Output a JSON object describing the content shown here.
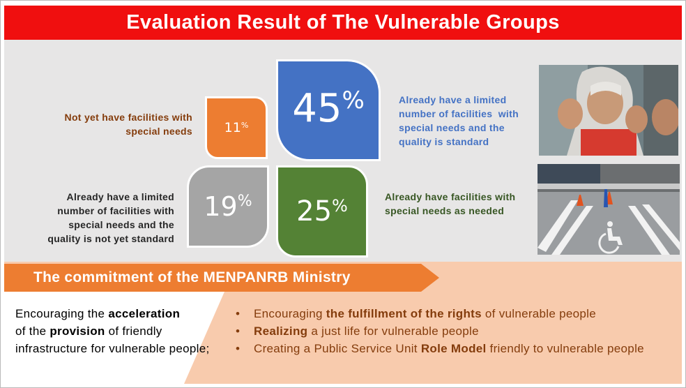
{
  "title": "Evaluation Result of The Vulnerable Groups",
  "tiles": {
    "orange": {
      "value": "11",
      "sign": "%",
      "color": "#ed7d31"
    },
    "blue": {
      "value": "45",
      "sign": "%",
      "color": "#4472c4"
    },
    "gray": {
      "value": "19",
      "sign": "%",
      "color": "#a5a5a5"
    },
    "green": {
      "value": "25",
      "sign": "%",
      "color": "#548235"
    }
  },
  "labels": {
    "top_left": [
      "Not yet have facilities with",
      "special needs"
    ],
    "top_right": [
      "Already have a limited",
      "number of facilities  with",
      "special needs and the",
      "quality is standard"
    ],
    "bottom_left": [
      "Already have a limited",
      "number of facilities with",
      "special needs and the",
      "quality is not yet standard"
    ],
    "bottom_right": [
      "Already have facilities with",
      "special needs as needed"
    ]
  },
  "photos": {
    "top": "photo-girl-sign-language",
    "bottom": "photo-accessible-parking"
  },
  "commitment": {
    "title": "The commitment of the MENPANRB Ministry",
    "left": {
      "t1": "Encouraging the ",
      "b1": "acceleration",
      "t2": " of the ",
      "b2": "provision",
      "t3": " of friendly infrastructure for vulnerable people;"
    },
    "bullets": [
      {
        "pre": "Encouraging ",
        "bold": "the fulfillment of the rights",
        "post": " of vulnerable people"
      },
      {
        "pre": "",
        "bold": "Realizing",
        "post": " a just life for vulnerable people"
      },
      {
        "pre": "Creating a Public Service Unit ",
        "bold": "Role Model",
        "post": " friendly to vulnerable people"
      }
    ],
    "bullet_symbol": "•"
  }
}
